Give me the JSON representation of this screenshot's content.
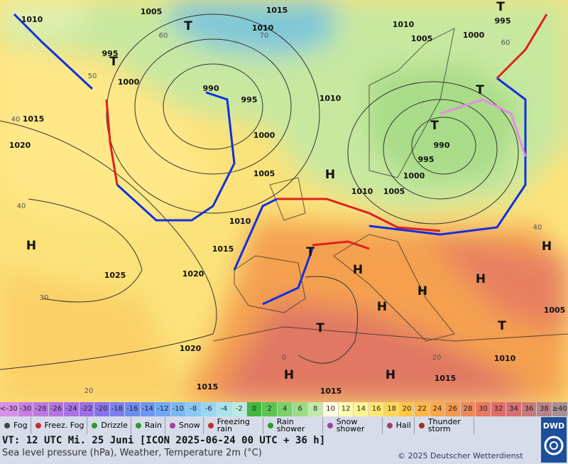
{
  "map": {
    "pressure_labels": [
      "1010",
      "1005",
      "1015",
      "1010",
      "1010",
      "1005",
      "1000",
      "995",
      "995",
      "1000",
      "990",
      "995",
      "1000",
      "1005",
      "1010",
      "1015",
      "1010",
      "990",
      "995",
      "1000",
      "1005",
      "1010",
      "1015",
      "1020",
      "1025",
      "1020",
      "1020",
      "1015",
      "1015",
      "1015",
      "1010",
      "1005"
    ],
    "temperature_labels": [
      "60",
      "70",
      "50",
      "40",
      "40",
      "30",
      "20",
      "60",
      "40",
      "0",
      "20"
    ],
    "highs": [
      "H",
      "H",
      "H",
      "H",
      "H",
      "H",
      "H",
      "H",
      "H"
    ],
    "lows": [
      "T",
      "T",
      "T",
      "T",
      "T",
      "T",
      "T",
      "T"
    ]
  },
  "temperature_scale": {
    "labels": [
      "<-30",
      "-30",
      "-28",
      "-26",
      "-24",
      "-22",
      "-20",
      "-18",
      "-16",
      "-14",
      "-12",
      "-10",
      "-8",
      "-6",
      "-4",
      "-2",
      "0",
      "2",
      "4",
      "6",
      "8",
      "10",
      "12",
      "14",
      "16",
      "18",
      "20",
      "22",
      "24",
      "26",
      "28",
      "30",
      "32",
      "34",
      "36",
      "38",
      "≥40 °C"
    ],
    "colors": [
      "#d690e6",
      "#c87ee0",
      "#bf78e0",
      "#b474e2",
      "#a872e4",
      "#9c70e6",
      "#8874ea",
      "#7a80ee",
      "#6e8cf0",
      "#6a98f2",
      "#70a8f4",
      "#7ab8f4",
      "#88c8f4",
      "#98d6f2",
      "#a8e2ec",
      "#b8ece0",
      "#40b840",
      "#5cc450",
      "#7cd068",
      "#9cdc84",
      "#c0eaa8",
      "#ffffe0",
      "#ffffb0",
      "#fff590",
      "#ffe870",
      "#ffd858",
      "#ffc848",
      "#ffb844",
      "#ffa844",
      "#f8984c",
      "#f08858",
      "#e87860",
      "#e06c66",
      "#d86e70",
      "#c87a7a",
      "#b88484",
      "#a89090"
    ]
  },
  "weather_legend": [
    "Fog",
    "Freez. Fog",
    "Drizzle",
    "Rain",
    "Snow",
    "Freezing rain",
    "Rain shower",
    "Snow shower",
    "Hail",
    "Thunder storm"
  ],
  "footer": {
    "valid_time": "VT: 12 UTC Mi.  25 Juni [ICON 2025-06-24  00 UTC + 36 h]",
    "description": "Sea level pressure (hPa), Weather, Temperature 2m (°C)",
    "copyright": "© 2025 Deutscher Wetterdienst",
    "logo": "DWD"
  }
}
